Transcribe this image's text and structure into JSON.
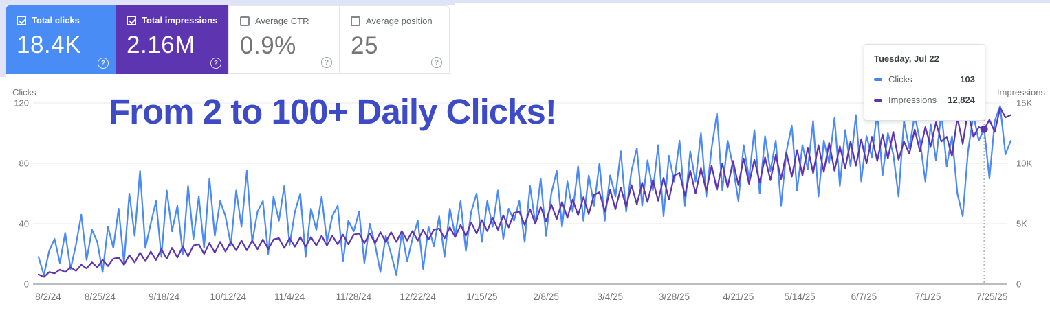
{
  "cards": [
    {
      "label": "Total clicks",
      "value": "18.4K",
      "checked": true,
      "bg": "#4a8cf5",
      "filled": true,
      "help_icon": "?"
    },
    {
      "label": "Total impressions",
      "value": "2.16M",
      "checked": true,
      "bg": "#5e35b1",
      "filled": true,
      "help_icon": "?"
    },
    {
      "label": "Average CTR",
      "value": "0.9%",
      "checked": false,
      "bg": "#ffffff",
      "filled": false,
      "help_icon": "?"
    },
    {
      "label": "Average position",
      "value": "25",
      "checked": false,
      "bg": "#ffffff",
      "filled": false,
      "help_icon": "?"
    }
  ],
  "overlay_headline": {
    "text": "From 2 to 100+ Daily Clicks!",
    "color": "#3e4bc6"
  },
  "tooltip": {
    "date": "Tuesday, Jul 22",
    "rows": [
      {
        "label": "Clicks",
        "value": "103",
        "color": "#4285f4"
      },
      {
        "label": "Impressions",
        "value": "12,824",
        "color": "#5e35b1"
      }
    ]
  },
  "chart_data": {
    "type": "line",
    "title": "",
    "left_axis": {
      "title": "Clicks",
      "range": [
        0,
        120
      ],
      "tick_values": [
        0,
        40,
        80,
        120
      ],
      "tick_labels": [
        "0",
        "40",
        "80",
        "120"
      ]
    },
    "right_axis": {
      "title": "Impressions",
      "range": [
        0,
        15000
      ],
      "tick_values": [
        0,
        5000,
        10000,
        15000
      ],
      "tick_labels": [
        "0",
        "5K",
        "10K",
        "15K"
      ]
    },
    "grid": true,
    "legend_position": "none",
    "x_start_date": "8/2/24",
    "x_end_date": "7/25/25",
    "sample_interval_days": 2,
    "x_ticks": [
      {
        "label": "8/2/24",
        "day": 0
      },
      {
        "label": "8/25/24",
        "day": 23
      },
      {
        "label": "9/18/24",
        "day": 47
      },
      {
        "label": "10/12/24",
        "day": 71
      },
      {
        "label": "11/4/24",
        "day": 94
      },
      {
        "label": "11/28/24",
        "day": 118
      },
      {
        "label": "12/22/24",
        "day": 142
      },
      {
        "label": "1/15/25",
        "day": 166
      },
      {
        "label": "2/8/25",
        "day": 190
      },
      {
        "label": "3/4/25",
        "day": 214
      },
      {
        "label": "3/28/25",
        "day": 238
      },
      {
        "label": "4/21/25",
        "day": 262
      },
      {
        "label": "5/14/25",
        "day": 285
      },
      {
        "label": "6/7/25",
        "day": 309
      },
      {
        "label": "7/1/25",
        "day": 333
      },
      {
        "label": "7/25/25",
        "day": 357
      }
    ],
    "series": [
      {
        "name": "Clicks",
        "axis": "left",
        "color": "#4a8af4",
        "values": [
          18,
          6,
          22,
          30,
          14,
          34,
          10,
          26,
          46,
          16,
          36,
          28,
          8,
          38,
          24,
          50,
          14,
          60,
          32,
          75,
          24,
          40,
          55,
          18,
          62,
          35,
          52,
          20,
          65,
          30,
          58,
          24,
          70,
          32,
          55,
          45,
          26,
          62,
          38,
          75,
          28,
          48,
          55,
          20,
          58,
          42,
          65,
          26,
          48,
          60,
          18,
          50,
          36,
          58,
          28,
          45,
          52,
          15,
          42,
          35,
          48,
          14,
          40,
          26,
          8,
          32,
          20,
          6,
          35,
          15,
          30,
          42,
          10,
          38,
          25,
          45,
          18,
          50,
          32,
          55,
          22,
          48,
          60,
          28,
          55,
          38,
          62,
          30,
          50,
          42,
          55,
          28,
          65,
          40,
          70,
          32,
          60,
          75,
          38,
          68,
          48,
          78,
          42,
          72,
          52,
          80,
          42,
          72,
          58,
          88,
          48,
          75,
          90,
          52,
          82,
          62,
          92,
          45,
          85,
          68,
          95,
          52,
          88,
          68,
          100,
          58,
          90,
          113,
          62,
          95,
          78,
          55,
          92,
          70,
          102,
          60,
          98,
          75,
          95,
          52,
          88,
          105,
          62,
          92,
          76,
          108,
          58,
          95,
          80,
          110,
          65,
          102,
          78,
          112,
          68,
          98,
          84,
          115,
          72,
          100,
          86,
          58,
          108,
          90,
          112,
          95,
          68,
          106,
          82,
          114,
          78,
          98,
          60,
          45,
          88,
          112,
          95,
          103,
          70,
          108,
          118,
          86,
          95
        ]
      },
      {
        "name": "Impressions",
        "axis": "right",
        "color": "#5e35b1",
        "values": [
          800,
          600,
          1000,
          900,
          1200,
          1000,
          1400,
          1100,
          1600,
          1300,
          1800,
          1400,
          2000,
          1500,
          2100,
          2200,
          1600,
          2400,
          1800,
          2600,
          1900,
          2700,
          2000,
          2900,
          2100,
          3000,
          2200,
          3100,
          2300,
          3200,
          3300,
          2500,
          3400,
          2600,
          3500,
          2700,
          3500,
          2800,
          3600,
          2800,
          3600,
          2900,
          3700,
          2900,
          3700,
          3800,
          3000,
          3800,
          3100,
          3900,
          3100,
          3900,
          3200,
          4000,
          3200,
          4000,
          3300,
          4100,
          3300,
          4100,
          4200,
          3400,
          4200,
          3400,
          4300,
          3500,
          4300,
          3500,
          4400,
          3600,
          4400,
          3600,
          4500,
          3700,
          4500,
          4600,
          3800,
          4700,
          3900,
          4900,
          4000,
          5100,
          4200,
          5300,
          4400,
          5500,
          4500,
          5700,
          4700,
          5900,
          6000,
          4900,
          6200,
          5000,
          6400,
          5200,
          6600,
          5400,
          6800,
          5500,
          7000,
          5700,
          7200,
          5800,
          7400,
          7600,
          6000,
          7800,
          6200,
          8000,
          6400,
          8200,
          6600,
          8400,
          6800,
          8600,
          6900,
          8800,
          7000,
          9000,
          9200,
          7300,
          9400,
          7500,
          9600,
          7700,
          9800,
          7800,
          10000,
          8000,
          10200,
          8200,
          10400,
          8300,
          10300,
          8400,
          10500,
          8600,
          10700,
          8700,
          10900,
          8900,
          11100,
          9000,
          11300,
          9200,
          11500,
          9300,
          11700,
          9400,
          11400,
          9600,
          11800,
          9800,
          12000,
          10000,
          12200,
          10200,
          12400,
          10400,
          12600,
          10300,
          11800,
          10800,
          12800,
          11000,
          13000,
          11400,
          13400,
          11800,
          12200,
          10600,
          13800,
          11600,
          14400,
          12200,
          13000,
          12824,
          13600,
          12600,
          14600,
          13800,
          14000
        ]
      }
    ],
    "hover": {
      "index": 177,
      "date": "Tuesday, Jul 22",
      "clicks": 103,
      "impressions": 12824
    }
  }
}
